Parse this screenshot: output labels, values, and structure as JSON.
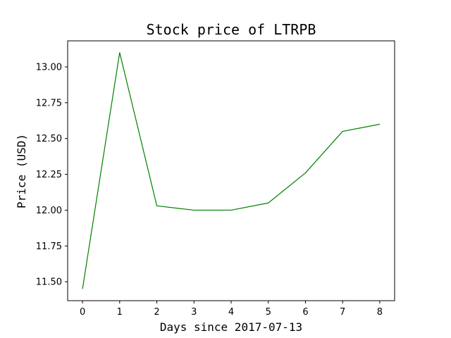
{
  "chart_data": {
    "type": "line",
    "title": "Stock price of LTRPB",
    "xlabel": "Days since 2017-07-13",
    "ylabel": "Price (USD)",
    "x": [
      0,
      1,
      2,
      3,
      4,
      5,
      6,
      7,
      8
    ],
    "series": [
      {
        "values": [
          11.45,
          13.1,
          12.03,
          12.0,
          12.0,
          12.05,
          12.26,
          12.55,
          12.6
        ],
        "color": "#008000"
      }
    ],
    "xlim": [
      -0.4,
      8.4
    ],
    "ylim": [
      11.368,
      13.182
    ],
    "x_ticks": [
      0,
      1,
      2,
      3,
      4,
      5,
      6,
      7,
      8
    ],
    "x_tick_labels": [
      "0",
      "1",
      "2",
      "3",
      "4",
      "5",
      "6",
      "7",
      "8"
    ],
    "y_ticks": [
      11.5,
      11.75,
      12.0,
      12.25,
      12.5,
      12.75,
      13.0
    ],
    "y_tick_labels": [
      "11.50",
      "11.75",
      "12.00",
      "12.25",
      "12.50",
      "12.75",
      "13.00"
    ],
    "grid": false,
    "legend": false
  }
}
